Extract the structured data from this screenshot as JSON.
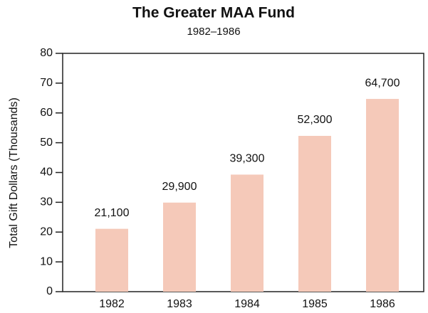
{
  "chart_data": {
    "type": "bar",
    "title": "The Greater MAA Fund",
    "subtitle": "1982–1986",
    "y_label": "Total Gift Dollars (Thousands)",
    "categories": [
      "1982",
      "1983",
      "1984",
      "1985",
      "1986"
    ],
    "values": [
      21.1,
      29.9,
      39.3,
      52.3,
      64.7
    ],
    "value_labels": [
      "21,100",
      "29,900",
      "39,300",
      "52,300",
      "64,700"
    ],
    "color": "#f5c9b9",
    "ylim": [
      0,
      80
    ],
    "yticks": [
      0,
      10,
      20,
      30,
      40,
      50,
      60,
      70,
      80
    ],
    "grid": false
  }
}
